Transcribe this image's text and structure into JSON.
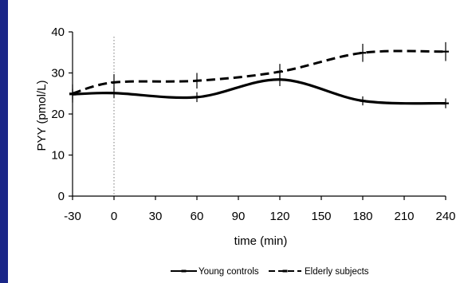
{
  "chart_data": {
    "type": "line",
    "xlabel": "time (min)",
    "ylabel": "PYY (pmol/L)",
    "xlim": [
      -30,
      240
    ],
    "ylim": [
      0,
      40
    ],
    "x_ticks": [
      "-30",
      "0",
      "30",
      "60",
      "90",
      "120",
      "150",
      "180",
      "210",
      "240"
    ],
    "y_ticks": [
      "0",
      "10",
      "20",
      "30",
      "40"
    ],
    "reference_line_x": 0,
    "legend_position": "bottom",
    "series": [
      {
        "name": "Young controls",
        "style": "solid",
        "color": "#000000",
        "x": [
          -30,
          0,
          60,
          120,
          180,
          240
        ],
        "y": [
          24.8,
          25.1,
          24.1,
          28.4,
          23.2,
          22.6
        ],
        "err": [
          1.3,
          1.2,
          1.2,
          1.6,
          1.1,
          1.2
        ]
      },
      {
        "name": "Elderly subjects",
        "style": "dashed",
        "color": "#000000",
        "x": [
          -30,
          0,
          60,
          120,
          180,
          240
        ],
        "y": [
          25.0,
          27.7,
          28.1,
          30.3,
          34.9,
          35.2
        ],
        "err": [
          2.2,
          2.0,
          1.9,
          1.9,
          2.2,
          2.3
        ]
      }
    ]
  }
}
